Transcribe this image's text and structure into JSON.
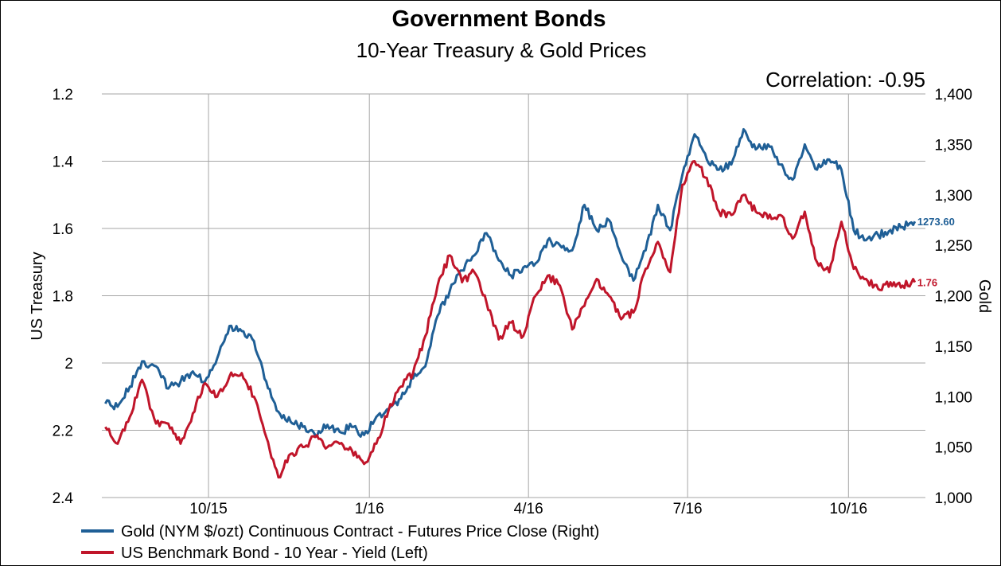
{
  "chart_data": {
    "type": "line",
    "title": "Government Bonds",
    "subtitle": "10-Year Treasury & Gold Prices",
    "annotation": "Correlation: -0.95",
    "ylabel_left": "US Treasury",
    "ylabel_right": "Gold",
    "x_tick_labels": [
      "10/15",
      "1/16",
      "4/16",
      "7/16",
      "10/16"
    ],
    "x_tick_positions": [
      "2015-10-01",
      "2016-01-01",
      "2016-04-01",
      "2016-07-01",
      "2016-10-01"
    ],
    "x_range": [
      "2015-08-01",
      "2016-11-14"
    ],
    "y_left": {
      "range": [
        1.2,
        2.4
      ],
      "inverted": true,
      "ticks": [
        1.2,
        1.4,
        1.6,
        1.8,
        2,
        2.2,
        2.4
      ],
      "tick_labels": [
        "1.2",
        "1.4",
        "1.6",
        "1.8",
        "2",
        "2.2",
        "2.4"
      ]
    },
    "y_right": {
      "range": [
        1000,
        1400
      ],
      "ticks": [
        1000,
        1050,
        1100,
        1150,
        1200,
        1250,
        1300,
        1350,
        1400
      ],
      "tick_labels": [
        "1,000",
        "1,050",
        "1,100",
        "1,150",
        "1,200",
        "1,250",
        "1,300",
        "1,350",
        "1,400"
      ]
    },
    "grid": true,
    "legend_position": "bottom-left",
    "series": [
      {
        "name": "Gold (NYM $/ozt) Continuous Contract - Futures Price Close  (Right)",
        "axis": "right",
        "color": "#1f5f96",
        "end_label": "1273.60",
        "points": [
          [
            "2015-08-03",
            1093
          ],
          [
            "2015-08-10",
            1090
          ],
          [
            "2015-08-17",
            1110
          ],
          [
            "2015-08-24",
            1135
          ],
          [
            "2015-09-01",
            1130
          ],
          [
            "2015-09-08",
            1108
          ],
          [
            "2015-09-15",
            1115
          ],
          [
            "2015-09-22",
            1125
          ],
          [
            "2015-09-29",
            1115
          ],
          [
            "2015-10-06",
            1138
          ],
          [
            "2015-10-13",
            1170
          ],
          [
            "2015-10-20",
            1165
          ],
          [
            "2015-10-27",
            1155
          ],
          [
            "2015-11-03",
            1115
          ],
          [
            "2015-11-10",
            1085
          ],
          [
            "2015-11-17",
            1075
          ],
          [
            "2015-11-24",
            1070
          ],
          [
            "2015-12-01",
            1062
          ],
          [
            "2015-12-08",
            1072
          ],
          [
            "2015-12-15",
            1065
          ],
          [
            "2015-12-22",
            1070
          ],
          [
            "2015-12-29",
            1062
          ],
          [
            "2016-01-05",
            1080
          ],
          [
            "2016-01-12",
            1088
          ],
          [
            "2016-01-19",
            1098
          ],
          [
            "2016-01-26",
            1118
          ],
          [
            "2016-02-02",
            1130
          ],
          [
            "2016-02-09",
            1180
          ],
          [
            "2016-02-16",
            1205
          ],
          [
            "2016-02-23",
            1225
          ],
          [
            "2016-03-01",
            1240
          ],
          [
            "2016-03-08",
            1262
          ],
          [
            "2016-03-15",
            1235
          ],
          [
            "2016-03-22",
            1220
          ],
          [
            "2016-03-29",
            1228
          ],
          [
            "2016-04-05",
            1232
          ],
          [
            "2016-04-12",
            1255
          ],
          [
            "2016-04-19",
            1250
          ],
          [
            "2016-04-26",
            1245
          ],
          [
            "2016-05-03",
            1290
          ],
          [
            "2016-05-10",
            1265
          ],
          [
            "2016-05-17",
            1275
          ],
          [
            "2016-05-24",
            1240
          ],
          [
            "2016-05-31",
            1215
          ],
          [
            "2016-06-07",
            1245
          ],
          [
            "2016-06-14",
            1290
          ],
          [
            "2016-06-21",
            1265
          ],
          [
            "2016-06-28",
            1320
          ],
          [
            "2016-07-05",
            1360
          ],
          [
            "2016-07-12",
            1335
          ],
          [
            "2016-07-19",
            1325
          ],
          [
            "2016-07-26",
            1330
          ],
          [
            "2016-08-02",
            1365
          ],
          [
            "2016-08-09",
            1345
          ],
          [
            "2016-08-16",
            1350
          ],
          [
            "2016-08-23",
            1330
          ],
          [
            "2016-08-30",
            1315
          ],
          [
            "2016-09-06",
            1350
          ],
          [
            "2016-09-13",
            1325
          ],
          [
            "2016-09-20",
            1335
          ],
          [
            "2016-09-27",
            1325
          ],
          [
            "2016-10-04",
            1265
          ],
          [
            "2016-10-11",
            1255
          ],
          [
            "2016-10-18",
            1260
          ],
          [
            "2016-10-25",
            1265
          ],
          [
            "2016-11-01",
            1268
          ],
          [
            "2016-11-08",
            1273.6
          ]
        ]
      },
      {
        "name": "US Benchmark Bond - 10 Year - Yield  (Left)",
        "axis": "left",
        "color": "#c0152a",
        "end_label": "1.76",
        "points": [
          [
            "2015-08-03",
            2.19
          ],
          [
            "2015-08-10",
            2.24
          ],
          [
            "2015-08-17",
            2.16
          ],
          [
            "2015-08-24",
            2.05
          ],
          [
            "2015-09-01",
            2.18
          ],
          [
            "2015-09-08",
            2.18
          ],
          [
            "2015-09-15",
            2.24
          ],
          [
            "2015-09-22",
            2.15
          ],
          [
            "2015-09-29",
            2.06
          ],
          [
            "2015-10-06",
            2.1
          ],
          [
            "2015-10-13",
            2.04
          ],
          [
            "2015-10-20",
            2.03
          ],
          [
            "2015-10-27",
            2.1
          ],
          [
            "2015-11-03",
            2.22
          ],
          [
            "2015-11-10",
            2.34
          ],
          [
            "2015-11-17",
            2.27
          ],
          [
            "2015-11-24",
            2.25
          ],
          [
            "2015-12-01",
            2.22
          ],
          [
            "2015-12-08",
            2.25
          ],
          [
            "2015-12-15",
            2.24
          ],
          [
            "2015-12-22",
            2.26
          ],
          [
            "2015-12-29",
            2.3
          ],
          [
            "2016-01-05",
            2.24
          ],
          [
            "2016-01-12",
            2.14
          ],
          [
            "2016-01-19",
            2.07
          ],
          [
            "2016-01-26",
            2.03
          ],
          [
            "2016-02-02",
            1.92
          ],
          [
            "2016-02-09",
            1.77
          ],
          [
            "2016-02-16",
            1.68
          ],
          [
            "2016-02-23",
            1.76
          ],
          [
            "2016-03-01",
            1.73
          ],
          [
            "2016-03-08",
            1.82
          ],
          [
            "2016-03-15",
            1.93
          ],
          [
            "2016-03-22",
            1.88
          ],
          [
            "2016-03-29",
            1.92
          ],
          [
            "2016-04-05",
            1.8
          ],
          [
            "2016-04-12",
            1.74
          ],
          [
            "2016-04-19",
            1.77
          ],
          [
            "2016-04-26",
            1.9
          ],
          [
            "2016-05-03",
            1.83
          ],
          [
            "2016-05-10",
            1.75
          ],
          [
            "2016-05-17",
            1.8
          ],
          [
            "2016-05-24",
            1.87
          ],
          [
            "2016-05-31",
            1.85
          ],
          [
            "2016-06-07",
            1.72
          ],
          [
            "2016-06-14",
            1.64
          ],
          [
            "2016-06-21",
            1.73
          ],
          [
            "2016-06-28",
            1.47
          ],
          [
            "2016-07-05",
            1.4
          ],
          [
            "2016-07-12",
            1.45
          ],
          [
            "2016-07-19",
            1.55
          ],
          [
            "2016-07-26",
            1.56
          ],
          [
            "2016-08-02",
            1.5
          ],
          [
            "2016-08-09",
            1.55
          ],
          [
            "2016-08-16",
            1.57
          ],
          [
            "2016-08-23",
            1.56
          ],
          [
            "2016-08-30",
            1.63
          ],
          [
            "2016-09-06",
            1.55
          ],
          [
            "2016-09-13",
            1.7
          ],
          [
            "2016-09-20",
            1.73
          ],
          [
            "2016-09-27",
            1.58
          ],
          [
            "2016-10-04",
            1.72
          ],
          [
            "2016-10-11",
            1.75
          ],
          [
            "2016-10-18",
            1.78
          ],
          [
            "2016-10-25",
            1.76
          ],
          [
            "2016-11-01",
            1.77
          ],
          [
            "2016-11-08",
            1.76
          ]
        ]
      }
    ]
  }
}
